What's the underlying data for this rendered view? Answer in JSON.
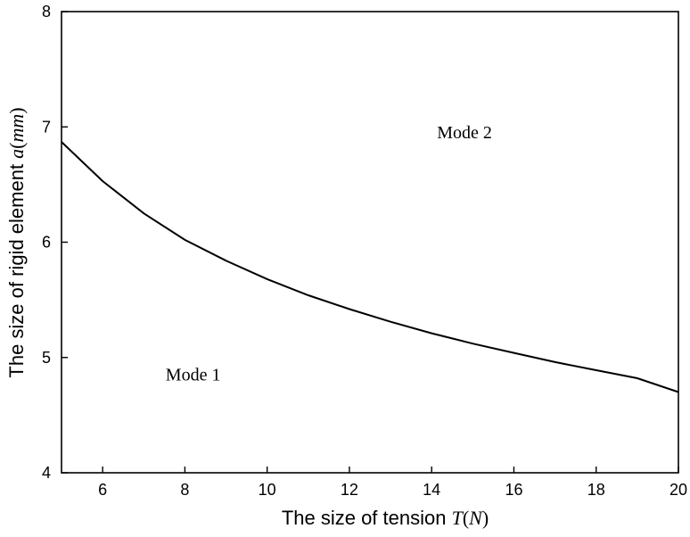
{
  "chart_data": {
    "type": "line",
    "title": "",
    "xlabel": {
      "text": "The size of tension ",
      "var": "T",
      "unit_open": "(",
      "unit": "N",
      "unit_close": ")"
    },
    "ylabel": {
      "text": "The size of rigid element ",
      "var": "a",
      "unit_open": "(",
      "unit": "mm",
      "unit_close": ")"
    },
    "xlim": [
      5,
      20
    ],
    "ylim": [
      4,
      8
    ],
    "xticks": [
      6,
      8,
      10,
      12,
      14,
      16,
      18,
      20
    ],
    "yticks": [
      4,
      5,
      6,
      7,
      8
    ],
    "grid": false,
    "series": [
      {
        "x": [
          5,
          6,
          7,
          8,
          9,
          10,
          11,
          12,
          13,
          14,
          15,
          16,
          17,
          18,
          19,
          20
        ],
        "y": [
          6.87,
          6.53,
          6.25,
          6.02,
          5.84,
          5.68,
          5.54,
          5.42,
          5.31,
          5.21,
          5.12,
          5.04,
          4.96,
          4.89,
          4.82,
          4.7
        ]
      }
    ],
    "annotations": [
      {
        "text": "Mode 2",
        "x": 14.8,
        "y": 6.9
      },
      {
        "text": "Mode 1",
        "x": 8.2,
        "y": 4.8
      }
    ]
  }
}
